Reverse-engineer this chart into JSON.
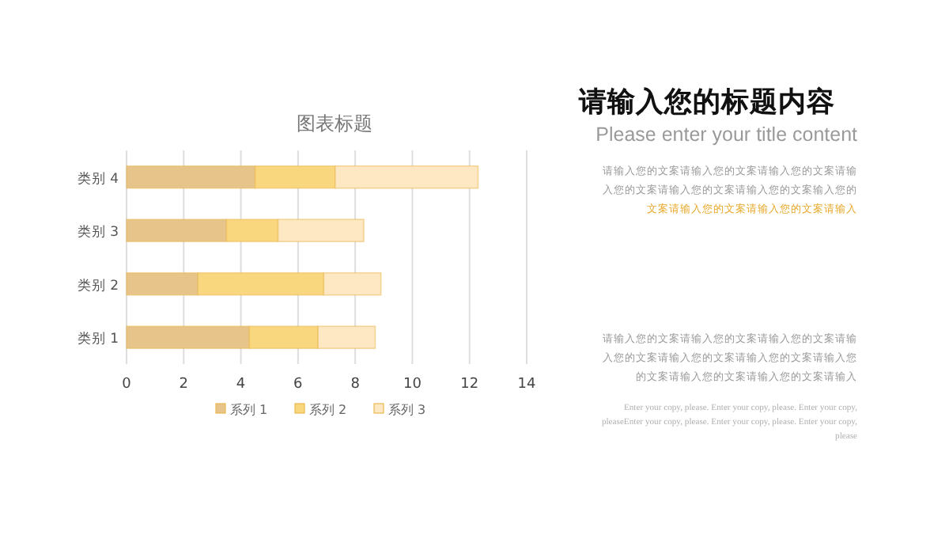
{
  "chart_data": [
    {
      "type": "bar",
      "orientation": "horizontal",
      "stacked": true,
      "title": "图表标题",
      "categories": [
        "类别 4",
        "类别 3",
        "类别 2",
        "类别 1"
      ],
      "series": [
        {
          "name": "系列 1",
          "color": "#e6c48a",
          "values": [
            4.5,
            3.5,
            2.5,
            4.3
          ]
        },
        {
          "name": "系列 2",
          "color": "#f9d77e",
          "values": [
            2.8,
            1.8,
            4.4,
            2.4
          ]
        },
        {
          "name": "系列 3",
          "color": "#fde8c3",
          "values": [
            5,
            3,
            2,
            2
          ]
        }
      ],
      "xlim": [
        0,
        14
      ],
      "xticks": [
        0,
        2,
        4,
        6,
        8,
        10,
        12,
        14
      ],
      "grid": "x",
      "legend": "bottom"
    },
    {
      "type": "other",
      "title": "请输入您的标题内容",
      "subtitle": "Please enter your title content",
      "annotations": [
        "请输入您的文案请输入您的文案请输入您的文案请输入您的文案请输入您的文案请输入您的文案输入您的",
        "文案请输入您的文案请输入您的文案请输入",
        "请输入您的文案请输入您的文案请输入您的文案请输入您的文案请输入您的文案请输入您的文案请输入您的文案请输入您的文案请输入您的文案请输入",
        "Enter your copy, please. Enter your copy, please. Enter your copy, pleaseEnter your copy, please. Enter your copy, please. Enter your copy, please"
      ],
      "colors": [
        "#9a9a9a",
        "#e8a92c",
        "#9a9a9a",
        "#b0b0b0"
      ]
    }
  ]
}
